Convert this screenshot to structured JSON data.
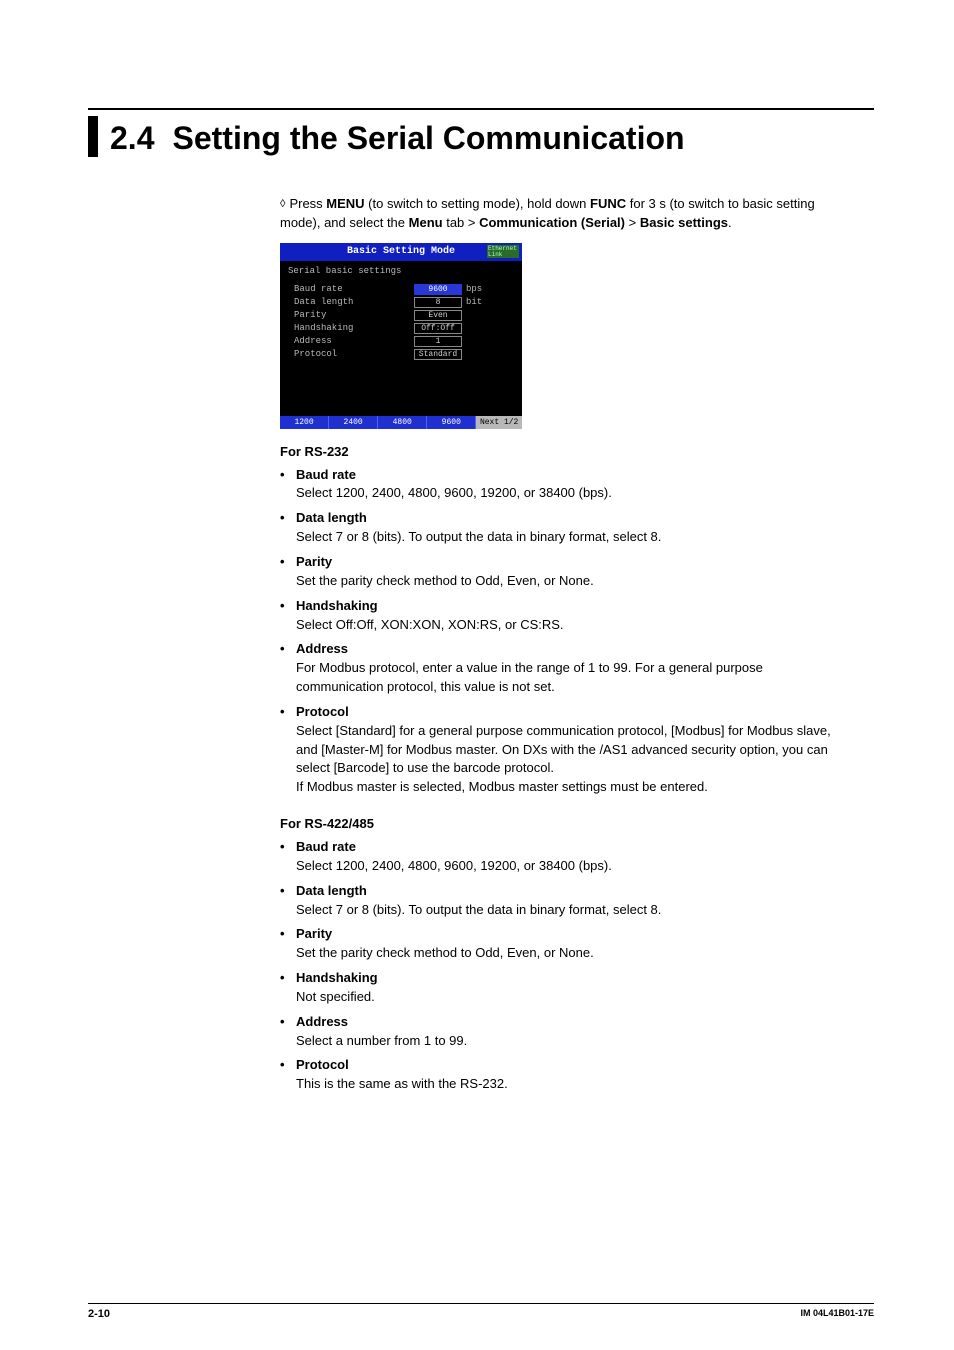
{
  "section": {
    "number": "2.4",
    "title": "Setting the Serial Communication"
  },
  "intro": {
    "prefix": "Press ",
    "menu": "MENU",
    "mid1": " (to switch to setting mode), hold down ",
    "func": "FUNC",
    "mid2": " for 3 s (to switch to basic setting mode), and select the ",
    "menutab": "Menu",
    "mid3": " tab > ",
    "comm": "Communication (Serial)",
    "mid4": " > ",
    "basic": "Basic settings",
    "end": "."
  },
  "screenshot": {
    "title": "Basic Setting Mode",
    "linkbadge": "Ethernet Link",
    "subtitle": "Serial basic settings",
    "rows": [
      {
        "label": "Baud rate",
        "value": "9600",
        "unit": "bps",
        "selected": true
      },
      {
        "label": "Data length",
        "value": "8",
        "unit": "bit",
        "selected": false
      },
      {
        "label": "Parity",
        "value": "Even",
        "unit": "",
        "selected": false
      },
      {
        "label": "Handshaking",
        "value": "Off:Off",
        "unit": "",
        "selected": false
      },
      {
        "label": "Address",
        "value": "1",
        "unit": "",
        "selected": false
      },
      {
        "label": "Protocol",
        "value": "Standard",
        "unit": "",
        "selected": false
      }
    ],
    "buttons": [
      "1200",
      "2400",
      "4800",
      "9600"
    ],
    "next": "Next 1/2"
  },
  "rs232": {
    "heading": "For RS-232",
    "items": [
      {
        "label": "Baud rate",
        "desc": "Select 1200, 2400, 4800, 9600, 19200, or 38400 (bps)."
      },
      {
        "label": "Data length",
        "desc": "Select 7 or 8 (bits). To output the data in binary format, select 8."
      },
      {
        "label": "Parity",
        "desc": "Set the parity check method to Odd, Even, or None."
      },
      {
        "label": "Handshaking",
        "desc": "Select Off:Off, XON:XON, XON:RS, or CS:RS."
      },
      {
        "label": "Address",
        "desc": "For Modbus protocol, enter a value in the range of 1 to 99. For a general purpose communication protocol, this value is not set."
      },
      {
        "label": "Protocol",
        "desc": "Select [Standard] for a general purpose communication protocol, [Modbus] for Modbus slave, and [Master-M] for Modbus master. On DXs with the /AS1 advanced security option, you can select [Barcode] to use the barcode protocol.\nIf Modbus master is selected, Modbus master settings must be entered."
      }
    ]
  },
  "rs422": {
    "heading": "For RS-422/485",
    "items": [
      {
        "label": "Baud rate",
        "desc": "Select 1200, 2400, 4800, 9600, 19200, or 38400 (bps)."
      },
      {
        "label": "Data length",
        "desc": "Select 7 or 8 (bits). To output the data in binary format, select 8."
      },
      {
        "label": "Parity",
        "desc": "Set the parity check method to Odd, Even, or None."
      },
      {
        "label": "Handshaking",
        "desc": "Not specified."
      },
      {
        "label": "Address",
        "desc": "Select a number from 1 to 99."
      },
      {
        "label": "Protocol",
        "desc": "This is the same as with the RS-232."
      }
    ]
  },
  "footer": {
    "page": "2-10",
    "doc": "IM 04L41B01-17E"
  }
}
